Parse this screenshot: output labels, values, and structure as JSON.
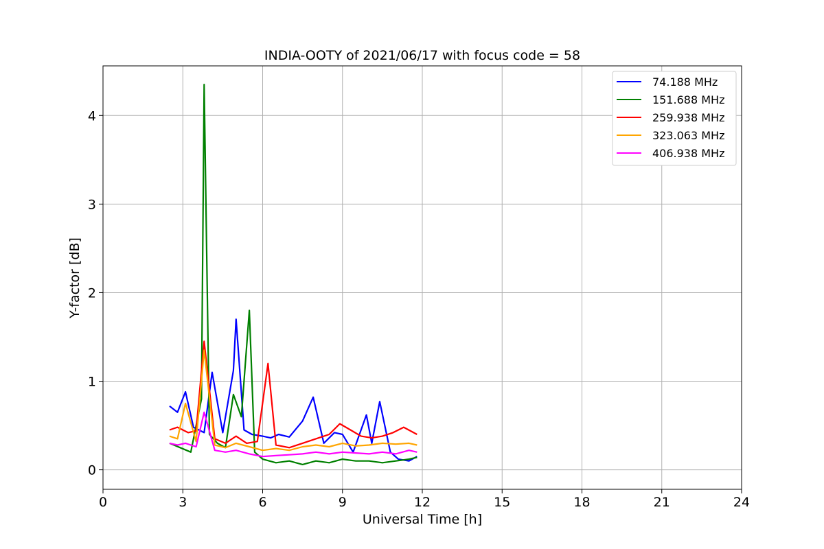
{
  "chart_data": {
    "type": "line",
    "title": "INDIA-OOTY of 2021/06/17 with focus code = 58",
    "xlabel": "Universal Time [h]",
    "ylabel": "Y-factor [dB]",
    "xlim": [
      0,
      24
    ],
    "ylim": [
      -0.22,
      4.56
    ],
    "xticks": [
      0,
      3,
      6,
      9,
      12,
      15,
      18,
      21,
      24
    ],
    "xtick_labels": [
      "0",
      "3",
      "6",
      "9",
      "12",
      "15",
      "18",
      "21",
      "24"
    ],
    "yticks": [
      0,
      1,
      2,
      3,
      4
    ],
    "ytick_labels": [
      "0",
      "1",
      "2",
      "3",
      "4"
    ],
    "grid": true,
    "legend_position": "top-right",
    "series": [
      {
        "name": " 74.188 MHz",
        "color": "#0000ff",
        "x": [
          2.5,
          2.8,
          3.1,
          3.4,
          3.8,
          4.1,
          4.5,
          4.9,
          5.0,
          5.3,
          5.6,
          6.0,
          6.3,
          6.6,
          7.0,
          7.5,
          7.9,
          8.3,
          8.7,
          9.0,
          9.4,
          9.9,
          10.1,
          10.4,
          10.8,
          11.1,
          11.5,
          11.8
        ],
        "values": [
          0.72,
          0.65,
          0.88,
          0.48,
          0.42,
          1.1,
          0.42,
          1.12,
          1.7,
          0.45,
          0.4,
          0.38,
          0.36,
          0.4,
          0.37,
          0.55,
          0.82,
          0.3,
          0.42,
          0.4,
          0.2,
          0.62,
          0.3,
          0.77,
          0.2,
          0.12,
          0.1,
          0.15
        ]
      },
      {
        "name": "151.688 MHz",
        "color": "#008000",
        "x": [
          2.5,
          2.9,
          3.3,
          3.7,
          3.8,
          4.0,
          4.3,
          4.6,
          4.9,
          5.2,
          5.5,
          5.7,
          6.0,
          6.5,
          7.0,
          7.5,
          8.0,
          8.5,
          9.0,
          9.5,
          10.0,
          10.5,
          11.0,
          11.5,
          11.8
        ],
        "values": [
          0.3,
          0.25,
          0.2,
          0.8,
          4.35,
          0.4,
          0.3,
          0.25,
          0.85,
          0.6,
          1.8,
          0.2,
          0.12,
          0.08,
          0.1,
          0.06,
          0.1,
          0.08,
          0.12,
          0.1,
          0.1,
          0.08,
          0.1,
          0.12,
          0.14
        ]
      },
      {
        "name": "259.938 MHz",
        "color": "#ff0000",
        "x": [
          2.5,
          2.8,
          3.2,
          3.5,
          3.8,
          4.2,
          4.6,
          5.0,
          5.4,
          5.8,
          6.2,
          6.5,
          7.0,
          7.5,
          8.0,
          8.5,
          8.9,
          9.3,
          9.7,
          10.1,
          10.5,
          10.9,
          11.3,
          11.8
        ],
        "values": [
          0.45,
          0.48,
          0.42,
          0.44,
          1.45,
          0.35,
          0.3,
          0.38,
          0.3,
          0.32,
          1.2,
          0.28,
          0.25,
          0.3,
          0.35,
          0.4,
          0.52,
          0.45,
          0.38,
          0.36,
          0.38,
          0.42,
          0.48,
          0.4
        ]
      },
      {
        "name": "323.063 MHz",
        "color": "#ffa500",
        "x": [
          2.5,
          2.8,
          3.1,
          3.5,
          3.8,
          4.2,
          4.6,
          5.0,
          5.5,
          6.0,
          6.5,
          7.0,
          7.5,
          8.0,
          8.5,
          9.0,
          9.5,
          10.0,
          10.5,
          11.0,
          11.5,
          11.8
        ],
        "values": [
          0.38,
          0.35,
          0.75,
          0.32,
          1.35,
          0.28,
          0.25,
          0.3,
          0.26,
          0.22,
          0.24,
          0.22,
          0.26,
          0.28,
          0.26,
          0.3,
          0.27,
          0.28,
          0.3,
          0.29,
          0.3,
          0.28
        ]
      },
      {
        "name": "406.938 MHz",
        "color": "#ff00ff",
        "x": [
          2.5,
          2.8,
          3.1,
          3.5,
          3.8,
          4.2,
          4.6,
          5.0,
          5.5,
          6.0,
          6.5,
          7.0,
          7.5,
          8.0,
          8.5,
          9.0,
          9.5,
          10.0,
          10.5,
          11.0,
          11.5,
          11.8
        ],
        "values": [
          0.3,
          0.28,
          0.3,
          0.26,
          0.65,
          0.22,
          0.2,
          0.22,
          0.18,
          0.15,
          0.16,
          0.17,
          0.18,
          0.2,
          0.18,
          0.2,
          0.19,
          0.18,
          0.2,
          0.18,
          0.22,
          0.2
        ]
      }
    ]
  }
}
